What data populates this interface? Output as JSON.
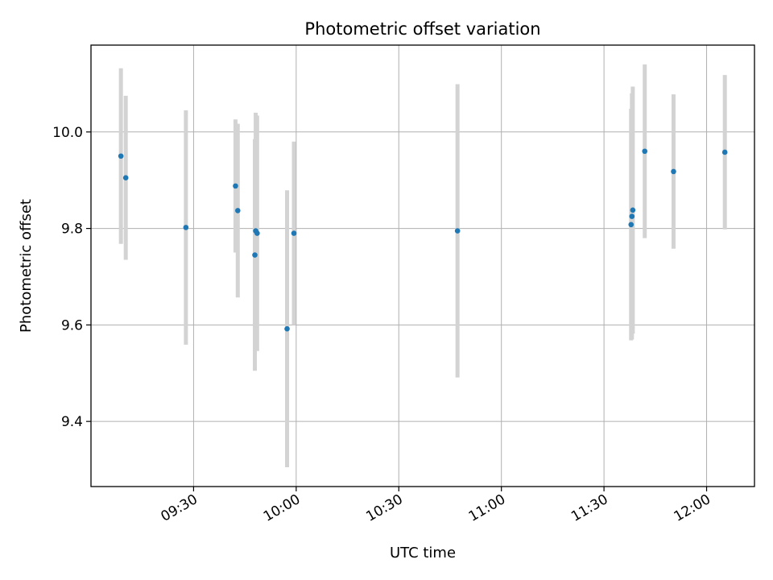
{
  "chart_data": {
    "type": "scatter",
    "title": "Photometric offset variation",
    "xlabel": "UTC time",
    "ylabel": "Photometric offset",
    "xlim": [
      "09:00",
      "12:14"
    ],
    "ylim": [
      9.265,
      10.18
    ],
    "xticks": [
      "09:30",
      "10:00",
      "10:30",
      "11:00",
      "11:30",
      "12:00"
    ],
    "yticks": [
      9.4,
      9.6,
      9.8,
      10.0
    ],
    "grid": true,
    "point_color": "#1f77b4",
    "errorbar_color": "#d3d3d3",
    "points": [
      {
        "x": "09:08:45",
        "y": 9.95,
        "err": 0.182
      },
      {
        "x": "09:10:10",
        "y": 9.905,
        "err": 0.17
      },
      {
        "x": "09:27:45",
        "y": 9.802,
        "err": 0.243
      },
      {
        "x": "09:42:15",
        "y": 9.888,
        "err": 0.138
      },
      {
        "x": "09:42:55",
        "y": 9.837,
        "err": 0.18
      },
      {
        "x": "09:47:55",
        "y": 9.745,
        "err": 0.24
      },
      {
        "x": "09:48:10",
        "y": 9.795,
        "err": 0.245
      },
      {
        "x": "09:48:35",
        "y": 9.79,
        "err": 0.244
      },
      {
        "x": "09:57:20",
        "y": 9.592,
        "err": 0.287
      },
      {
        "x": "09:59:20",
        "y": 9.79,
        "err": 0.19
      },
      {
        "x": "10:47:10",
        "y": 9.795,
        "err": 0.304
      },
      {
        "x": "11:37:55",
        "y": 9.808,
        "err": 0.24
      },
      {
        "x": "11:38:10",
        "y": 9.825,
        "err": 0.255
      },
      {
        "x": "11:38:25",
        "y": 9.838,
        "err": 0.256
      },
      {
        "x": "11:41:55",
        "y": 9.96,
        "err": 0.18
      },
      {
        "x": "11:50:20",
        "y": 9.918,
        "err": 0.16
      },
      {
        "x": "12:05:20",
        "y": 9.958,
        "err": 0.16
      }
    ]
  }
}
